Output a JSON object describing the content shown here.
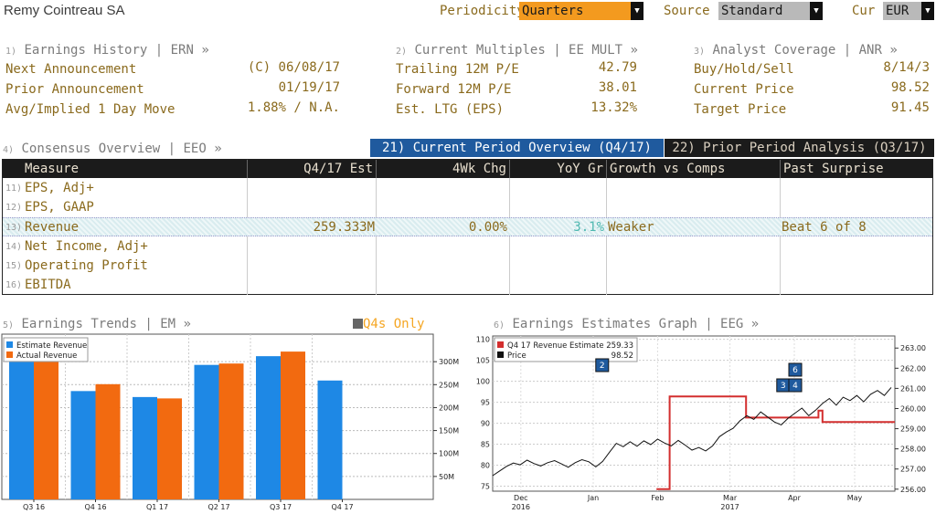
{
  "company": "Remy Cointreau SA",
  "controls": {
    "periodicity_label": "Periodicity",
    "periodicity_value": "Quarters",
    "source_label": "Source",
    "source_value": "Standard",
    "cur_label": "Cur",
    "cur_value": "EUR"
  },
  "earnings_history": {
    "num": "1)",
    "title": "Earnings History | ERN »",
    "rows": [
      {
        "label": "Next Announcement",
        "value": "(C)  06/08/17"
      },
      {
        "label": "Prior Announcement",
        "value": "01/19/17"
      },
      {
        "label": "Avg/Implied 1 Day Move",
        "value": "1.88% / N.A."
      }
    ]
  },
  "current_multiples": {
    "num": "2)",
    "title": "Current Multiples | EE MULT »",
    "rows": [
      {
        "label": "Trailing 12M P/E",
        "value": "42.79"
      },
      {
        "label": "Forward 12M P/E",
        "value": "38.01"
      },
      {
        "label": "Est. LTG (EPS)",
        "value": "13.32%"
      }
    ]
  },
  "analyst_coverage": {
    "num": "3)",
    "title": "Analyst Coverage | ANR »",
    "rows": [
      {
        "label": "Buy/Hold/Sell",
        "value": "8/14/3"
      },
      {
        "label": "Current Price",
        "value": "98.52"
      },
      {
        "label": "Target Price",
        "value": "91.45"
      }
    ]
  },
  "consensus": {
    "num": "4)",
    "title": "Consensus Overview | EEO »",
    "tab_current": "21) Current Period Overview (Q4/17)",
    "tab_prior": "22) Prior Period Analysis (Q3/17)",
    "headers": [
      "Measure",
      "Q4/17 Est",
      "4Wk Chg",
      "YoY Gr",
      "Growth vs Comps",
      "Past Surprise"
    ],
    "rows": [
      {
        "num": "11)",
        "measure": "EPS, Adj+",
        "est": "",
        "chg": "",
        "yoy": "",
        "comps": "",
        "surprise": ""
      },
      {
        "num": "12)",
        "measure": "EPS, GAAP",
        "est": "",
        "chg": "",
        "yoy": "",
        "comps": "",
        "surprise": ""
      },
      {
        "num": "13)",
        "measure": "Revenue",
        "est": "259.333M",
        "chg": "0.00%",
        "yoy": "3.1%",
        "comps": "Weaker",
        "surprise": "Beat 6 of 8"
      },
      {
        "num": "14)",
        "measure": "Net Income, Adj+",
        "est": "",
        "chg": "",
        "yoy": "",
        "comps": "",
        "surprise": ""
      },
      {
        "num": "15)",
        "measure": "Operating Profit",
        "est": "",
        "chg": "",
        "yoy": "",
        "comps": "",
        "surprise": ""
      },
      {
        "num": "16)",
        "measure": "EBITDA",
        "est": "",
        "chg": "",
        "yoy": "",
        "comps": "",
        "surprise": ""
      }
    ]
  },
  "earnings_trends": {
    "num": "5)",
    "title": "Earnings Trends | EM »",
    "q4_only": "Q4s Only"
  },
  "earnings_graph": {
    "num": "6)",
    "title": "Earnings Estimates Graph | EEG »"
  },
  "colors": {
    "estimate": "#1e88e5",
    "actual": "#f26a10",
    "est_line": "#d32f2f",
    "price_line": "#111111",
    "amber": "#f5a623"
  },
  "chart_data": [
    {
      "type": "bar",
      "categories": [
        "Q3 16",
        "Q4 16",
        "Q1 17",
        "Q2 17",
        "Q3 17",
        "Q4 17"
      ],
      "series": [
        {
          "name": "Estimate Revenue",
          "values": [
            310,
            236,
            223,
            293,
            312,
            259
          ]
        },
        {
          "name": "Actual Revenue",
          "values": [
            305,
            251,
            220,
            296,
            322,
            null
          ]
        }
      ],
      "yticks": [
        "50M",
        "100M",
        "150M",
        "200M",
        "250M",
        "300M"
      ],
      "ylim": [
        0,
        360
      ],
      "legend": "top-left"
    },
    {
      "type": "line",
      "x_ticks": [
        [
          "Dec",
          "2016"
        ],
        [
          "Jan",
          ""
        ],
        [
          "Feb",
          ""
        ],
        [
          "Mar",
          "2017"
        ],
        [
          "Apr",
          ""
        ],
        [
          "May",
          ""
        ]
      ],
      "left_ticks": [
        "75",
        "80",
        "85",
        "90",
        "95",
        "100",
        "105",
        "110"
      ],
      "right_ticks": [
        "256.00",
        "257.00",
        "258.00",
        "259.00",
        "260.00",
        "261.00",
        "262.00",
        "263.00"
      ],
      "legend": [
        {
          "name": "Q4 17 Revenue Estimate",
          "value": "259.33"
        },
        {
          "name": "Price",
          "value": "98.52"
        }
      ],
      "price": [
        77.5,
        78.6,
        79.7,
        80.5,
        80.1,
        81.2,
        80.4,
        79.8,
        80.6,
        81.1,
        80.3,
        79.5,
        80.6,
        81.3,
        80.8,
        79.6,
        80.9,
        83.1,
        85.2,
        84.4,
        85.6,
        84.5,
        85.8,
        84.9,
        86.2,
        85.3,
        84.6,
        85.9,
        84.8,
        83.6,
        84.2,
        83.4,
        84.6,
        86.8,
        87.9,
        88.8,
        90.6,
        91.8,
        90.9,
        92.7,
        91.5,
        90.3,
        89.6,
        91.2,
        92.4,
        93.6,
        91.8,
        93.1,
        94.7,
        95.9,
        94.3,
        96.2,
        95.4,
        96.6,
        95.1,
        96.9,
        97.8,
        96.6,
        98.52
      ],
      "estimate_steps": [
        [
          0.43,
          256.0
        ],
        [
          0.44,
          260.6
        ],
        [
          0.63,
          259.55
        ],
        [
          0.78,
          259.55
        ],
        [
          0.81,
          259.9
        ],
        [
          0.82,
          259.33
        ],
        [
          1.0,
          259.33
        ]
      ],
      "markers": [
        "2",
        "6",
        "3",
        "4"
      ]
    }
  ]
}
